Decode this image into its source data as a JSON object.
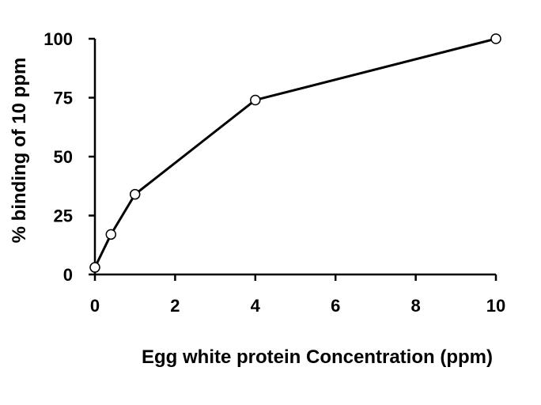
{
  "chart_data": {
    "type": "line",
    "title": "",
    "xlabel": "Egg white protein Concentration (ppm)",
    "ylabel": "% binding of 10 ppm",
    "xlim": [
      0,
      10
    ],
    "ylim": [
      0,
      100
    ],
    "xticks": [
      0,
      2,
      4,
      6,
      8,
      10
    ],
    "yticks": [
      0,
      25,
      50,
      75,
      100
    ],
    "grid": false,
    "legend": "none",
    "series": [
      {
        "x": [
          0,
          0.4,
          1,
          4,
          10
        ],
        "y": [
          3,
          17,
          34,
          74,
          100
        ],
        "marker": "open-circle",
        "color": "#000000"
      }
    ]
  }
}
